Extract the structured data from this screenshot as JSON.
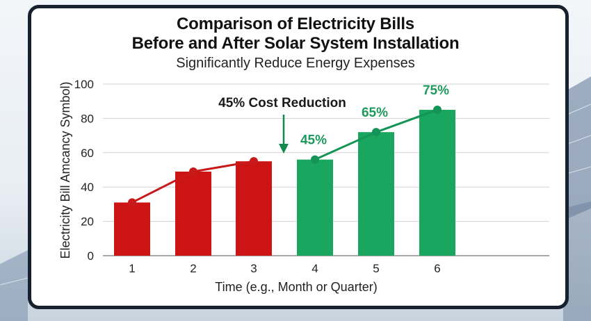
{
  "title_line1": "Comparison of Electricity Bills",
  "title_line2": "Before and After Solar System Installation",
  "subtitle": "Significantly Reduce Energy Expenses",
  "colors": {
    "before": "#cc1414",
    "after": "#19a65e",
    "after_label": "#1e9a5c",
    "frame": "#16202f"
  },
  "chart_data": {
    "type": "bar",
    "title": "Comparison of Electricity Bills Before and After Solar System Installation",
    "subtitle": "Significantly Reduce Energy Expenses",
    "xlabel": "Time (e.g., Month or Quarter)",
    "ylabel": "Electricity Bill Amcancy Symbol)",
    "ylim": [
      0,
      100
    ],
    "yticks": [
      0,
      20,
      40,
      60,
      80,
      100
    ],
    "categories": [
      "1",
      "2",
      "3",
      "4",
      "5",
      "6"
    ],
    "values": [
      31,
      49,
      55,
      56,
      72,
      85
    ],
    "line_points": [
      31,
      49,
      55,
      56,
      72,
      85
    ],
    "groups": [
      "before",
      "before",
      "before",
      "after",
      "after",
      "after"
    ],
    "data_labels": [
      "",
      "",
      "",
      "45%",
      "65%",
      "75%"
    ],
    "grid": true,
    "annotation": "45% Cost Reduction"
  }
}
